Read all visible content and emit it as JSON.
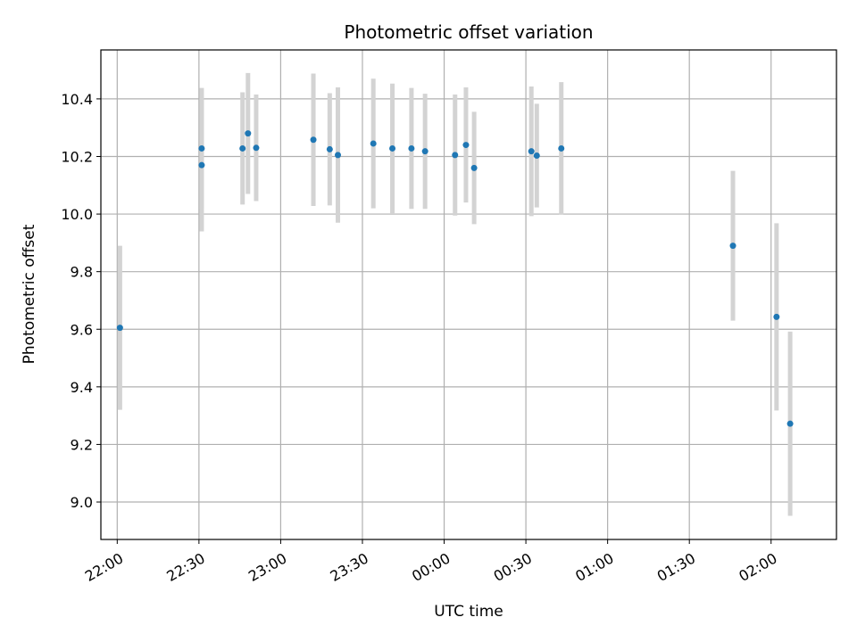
{
  "chart_data": {
    "type": "scatter",
    "title": "Photometric offset variation",
    "xlabel": "UTC time",
    "ylabel": "Photometric offset",
    "x_ticks": [
      "22:00",
      "22:30",
      "23:00",
      "23:30",
      "00:00",
      "00:30",
      "01:00",
      "01:30",
      "02:00"
    ],
    "y_ticks": [
      "9.0",
      "9.2",
      "9.4",
      "9.6",
      "9.8",
      "10.0",
      "10.2",
      "10.4"
    ],
    "y_tick_values": [
      9.0,
      9.2,
      9.4,
      9.6,
      9.8,
      10.0,
      10.2,
      10.4
    ],
    "xlim": [
      "21:54",
      "02:24"
    ],
    "ylim": [
      8.87,
      10.57
    ],
    "grid": true,
    "marker_color": "#1f77b4",
    "errorbar_color": "#d3d3d3",
    "series": [
      {
        "points": [
          {
            "x": "22:01",
            "y": 9.605,
            "err": 0.285
          },
          {
            "x": "22:31",
            "y": 10.228,
            "err": 0.21
          },
          {
            "x": "22:31",
            "y": 10.17,
            "err": 0.23
          },
          {
            "x": "22:46",
            "y": 10.228,
            "err": 0.195
          },
          {
            "x": "22:48",
            "y": 10.28,
            "err": 0.21
          },
          {
            "x": "22:51",
            "y": 10.23,
            "err": 0.185
          },
          {
            "x": "23:12",
            "y": 10.258,
            "err": 0.23
          },
          {
            "x": "23:18",
            "y": 10.225,
            "err": 0.195
          },
          {
            "x": "23:21",
            "y": 10.205,
            "err": 0.235
          },
          {
            "x": "23:34",
            "y": 10.245,
            "err": 0.225
          },
          {
            "x": "23:41",
            "y": 10.228,
            "err": 0.225
          },
          {
            "x": "23:48",
            "y": 10.228,
            "err": 0.21
          },
          {
            "x": "23:53",
            "y": 10.218,
            "err": 0.2
          },
          {
            "x": "00:04",
            "y": 10.205,
            "err": 0.21
          },
          {
            "x": "00:08",
            "y": 10.24,
            "err": 0.2
          },
          {
            "x": "00:11",
            "y": 10.16,
            "err": 0.195
          },
          {
            "x": "00:32",
            "y": 10.218,
            "err": 0.225
          },
          {
            "x": "00:34",
            "y": 10.203,
            "err": 0.18
          },
          {
            "x": "00:43",
            "y": 10.228,
            "err": 0.23
          },
          {
            "x": "01:46",
            "y": 9.89,
            "err": 0.26
          },
          {
            "x": "02:02",
            "y": 9.643,
            "err": 0.325
          },
          {
            "x": "02:07",
            "y": 9.272,
            "err": 0.32
          }
        ]
      }
    ]
  }
}
